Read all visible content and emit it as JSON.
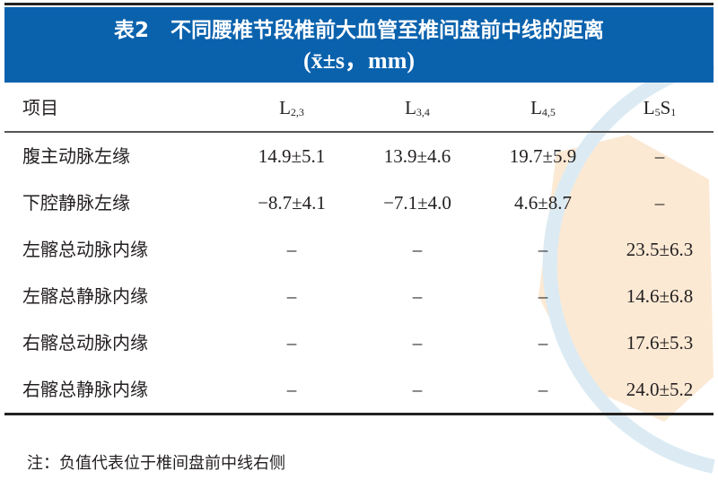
{
  "title": {
    "label": "表2",
    "text": "不同腰椎节段椎前大血管至椎间盘前中线的距离",
    "unit": "(x̄±s，mm)"
  },
  "table": {
    "headers": {
      "item": "项目",
      "cols": [
        {
          "base": "L",
          "sub": "2,3"
        },
        {
          "base": "L",
          "sub": "3,4"
        },
        {
          "base": "L",
          "sub": "4,5"
        },
        {
          "base": "L",
          "sub": "5",
          "base2": "S",
          "sub2": "1"
        }
      ]
    },
    "rows": [
      {
        "label": "腹主动脉左缘",
        "values": [
          "14.9±5.1",
          "13.9±4.6",
          "19.7±5.9",
          "–"
        ]
      },
      {
        "label": "下腔静脉左缘",
        "values": [
          "−8.7±4.1",
          "−7.1±4.0",
          "4.6±8.7",
          "–"
        ]
      },
      {
        "label": "左髂总动脉内缘",
        "values": [
          "–",
          "–",
          "–",
          "23.5±6.3"
        ]
      },
      {
        "label": "左髂总静脉内缘",
        "values": [
          "–",
          "–",
          "–",
          "14.6±6.8"
        ]
      },
      {
        "label": "右髂总动脉内缘",
        "values": [
          "–",
          "–",
          "–",
          "17.6±5.3"
        ]
      },
      {
        "label": "右髂总静脉内缘",
        "values": [
          "–",
          "–",
          "–",
          "24.0±5.2"
        ]
      }
    ]
  },
  "note": "注：负值代表位于椎间盘前中线右侧",
  "colors": {
    "band": "#0a62ad",
    "watermark_blue": "#d6e8f2",
    "watermark_orange": "#fbe6cc"
  }
}
